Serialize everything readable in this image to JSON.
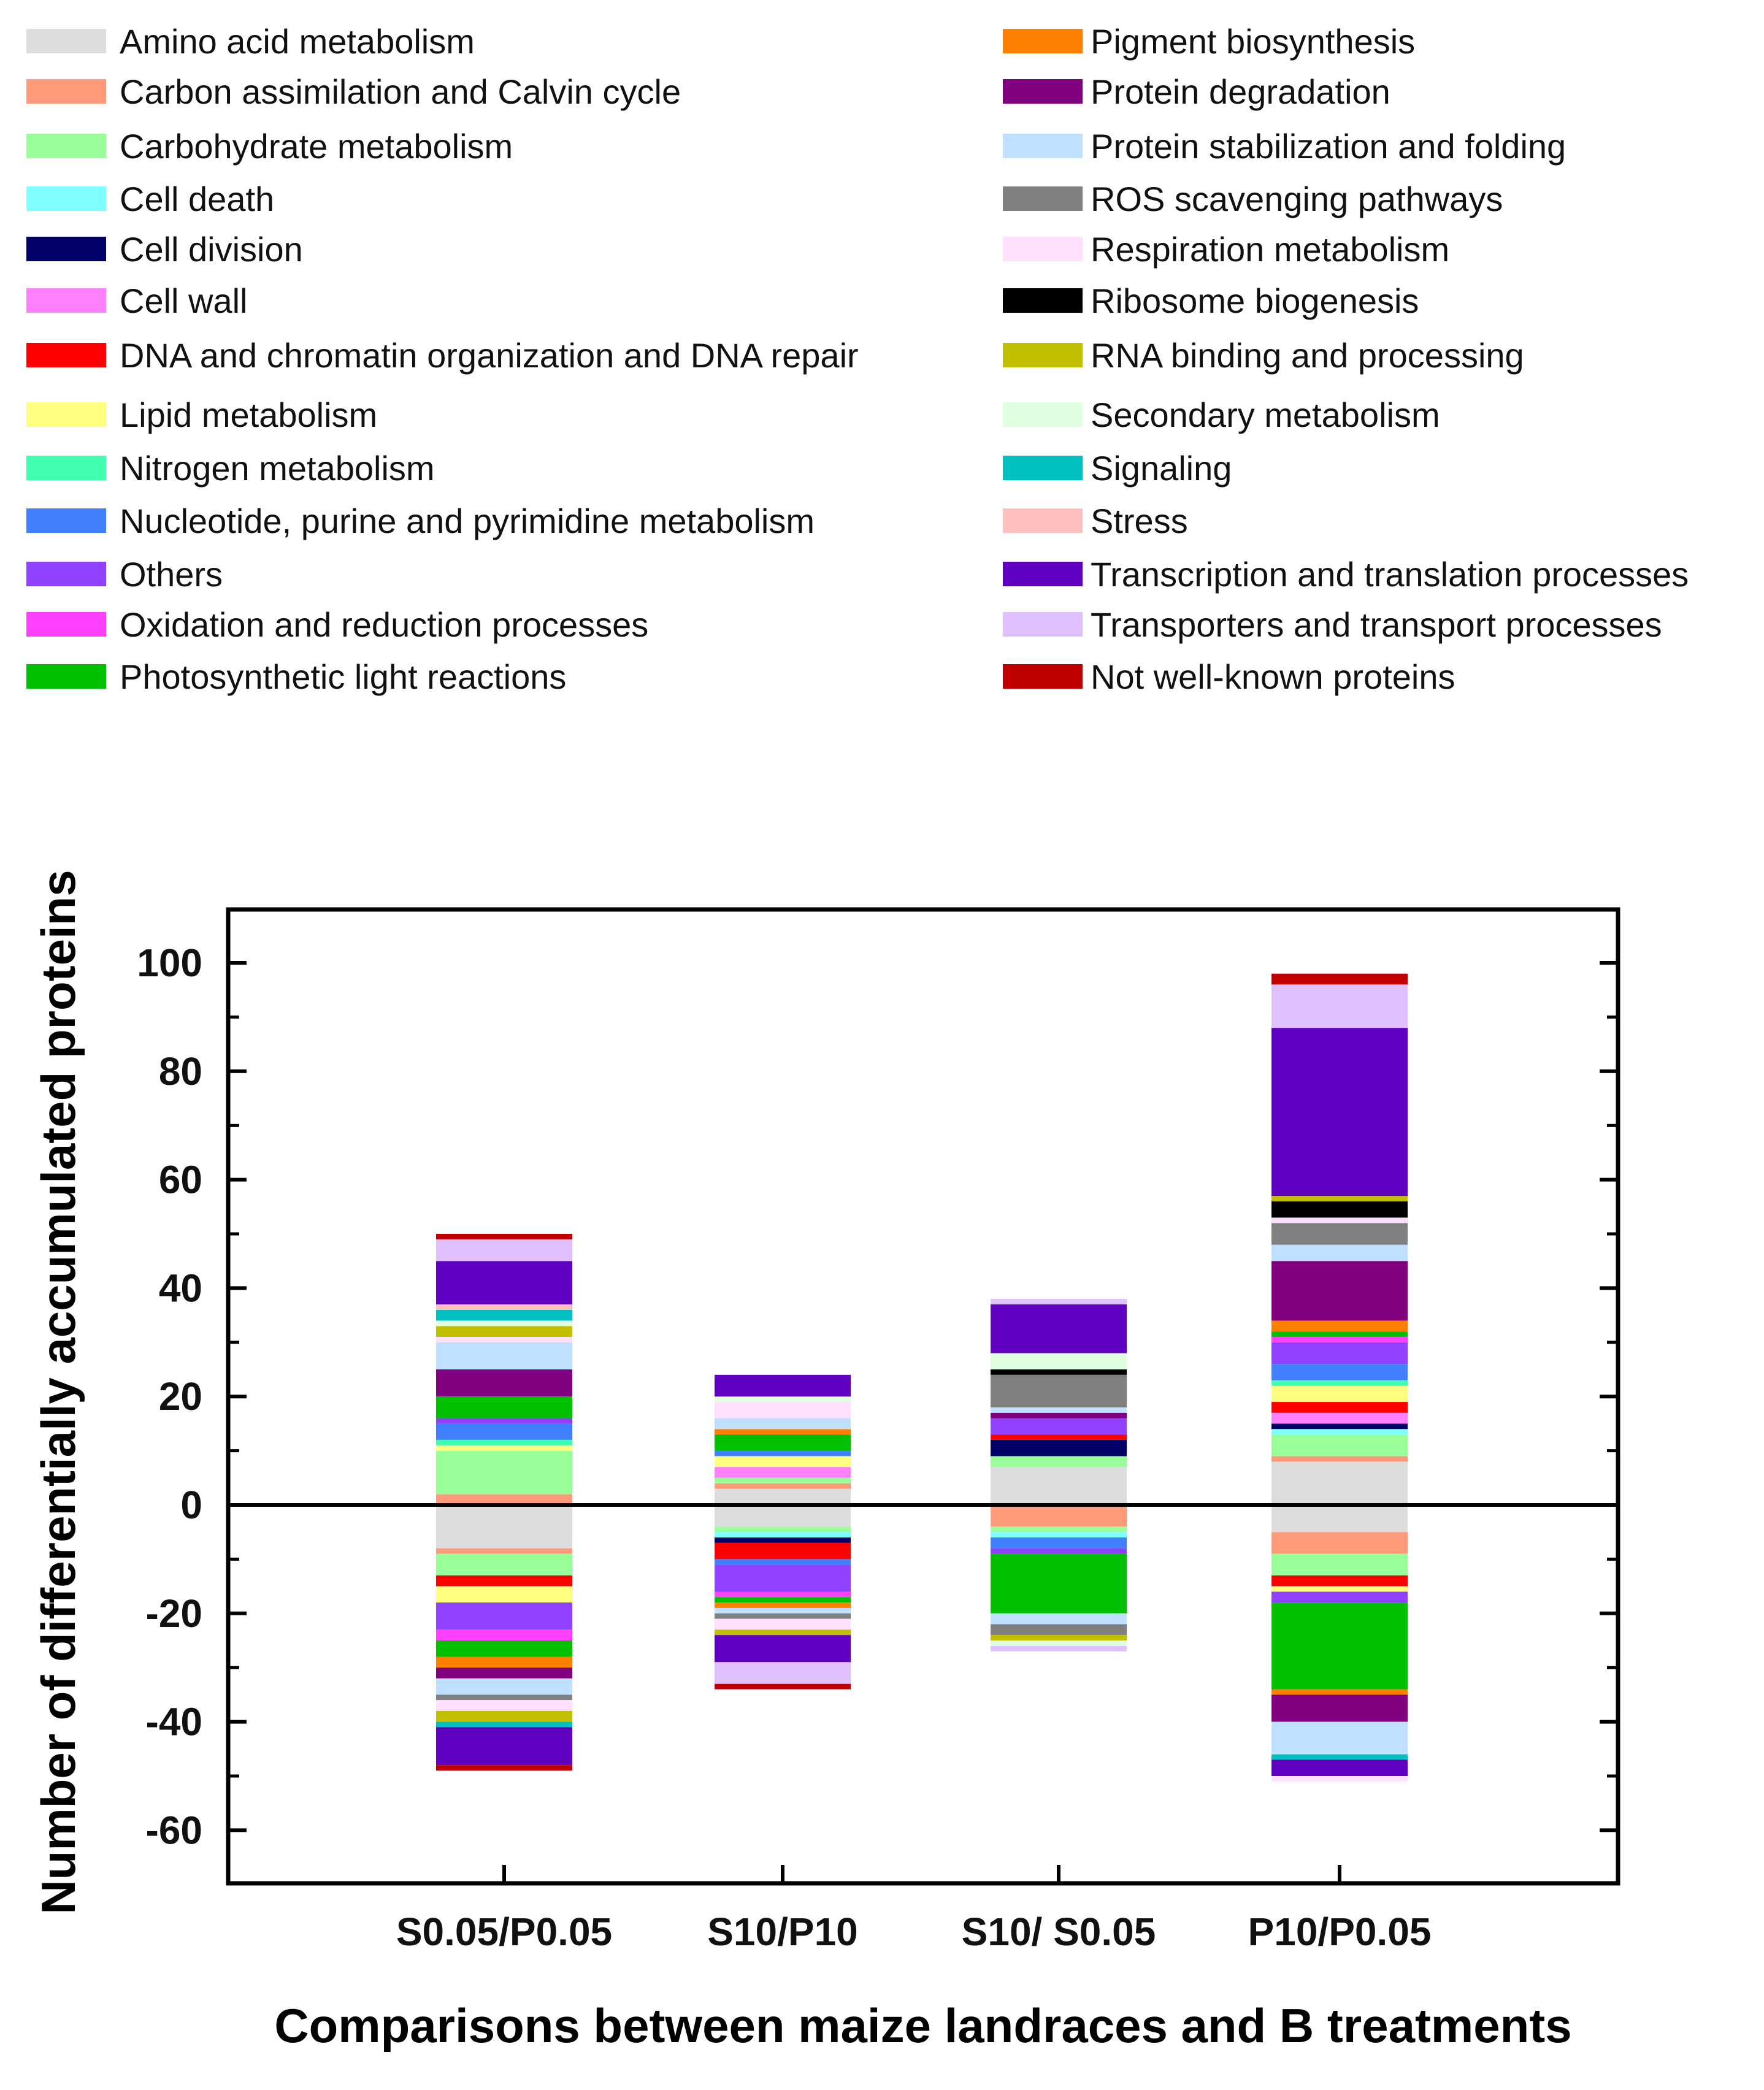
{
  "chart_data": {
    "type": "bar",
    "stacked": true,
    "title": "",
    "xlabel": "Comparisons between maize landraces and B treatments",
    "ylabel": "Number of differentially accumulated proteins",
    "ylim": [
      -70,
      110
    ],
    "yticks": [
      100,
      80,
      60,
      40,
      20,
      0,
      -20,
      -40,
      -60
    ],
    "grid": false,
    "legend_placement": "top",
    "legend": [
      {
        "name": "Amino acid metabolism",
        "color": "#dddddd"
      },
      {
        "name": "Carbon assimilation and Calvin cycle",
        "color": "#ff9a7a"
      },
      {
        "name": "Carbohydrate metabolism",
        "color": "#99ff99"
      },
      {
        "name": "Cell death",
        "color": "#80ffff"
      },
      {
        "name": "Cell division",
        "color": "#000066"
      },
      {
        "name": "Cell wall",
        "color": "#ff80ff"
      },
      {
        "name": "DNA and chromatin organization and DNA repair",
        "color": "#ff0000"
      },
      {
        "name": "Lipid metabolism",
        "color": "#ffff80"
      },
      {
        "name": "Nitrogen metabolism",
        "color": "#40ffb0"
      },
      {
        "name": "Nucleotide, purine and pyrimidine metabolism",
        "color": "#4080ff"
      },
      {
        "name": "Others",
        "color": "#9040ff"
      },
      {
        "name": "Oxidation and reduction processes",
        "color": "#ff40ff"
      },
      {
        "name": "Photosynthetic light reactions",
        "color": "#00c000"
      },
      {
        "name": "Pigment biosynthesis",
        "color": "#ff8000"
      },
      {
        "name": "Protein degradation",
        "color": "#800080"
      },
      {
        "name": "Protein stabilization and folding",
        "color": "#c0e0ff"
      },
      {
        "name": "ROS scavenging pathways",
        "color": "#808080"
      },
      {
        "name": "Respiration metabolism",
        "color": "#ffe0ff"
      },
      {
        "name": "Ribosome biogenesis",
        "color": "#000000"
      },
      {
        "name": "RNA binding and processing",
        "color": "#c0c000"
      },
      {
        "name": "Secondary metabolism",
        "color": "#e0ffe0"
      },
      {
        "name": "Signaling",
        "color": "#00c0c0"
      },
      {
        "name": "Stress",
        "color": "#ffc0c0"
      },
      {
        "name": "Transcription and translation processes",
        "color": "#6000c0"
      },
      {
        "name": "Transporters and transport processes",
        "color": "#e0c0ff"
      },
      {
        "name": "Not well-known proteins",
        "color": "#c00000"
      }
    ],
    "categories": [
      "S0.05/P0.05",
      "S10/P10",
      "S10/ S0.05",
      "P10/P0.05"
    ],
    "bars": [
      {
        "positive": [
          [
            1,
            2
          ],
          [
            2,
            8
          ],
          [
            7,
            1
          ],
          [
            8,
            1
          ],
          [
            9,
            3
          ],
          [
            10,
            1
          ],
          [
            12,
            4
          ],
          [
            14,
            5
          ],
          [
            15,
            5
          ],
          [
            17,
            1
          ],
          [
            19,
            2
          ],
          [
            20,
            1
          ],
          [
            21,
            2
          ],
          [
            22,
            1
          ],
          [
            23,
            8
          ],
          [
            24,
            4
          ],
          [
            25,
            1
          ]
        ],
        "negative": [
          [
            0,
            8
          ],
          [
            1,
            1
          ],
          [
            2,
            4
          ],
          [
            6,
            2
          ],
          [
            7,
            3
          ],
          [
            10,
            5
          ],
          [
            11,
            2
          ],
          [
            12,
            3
          ],
          [
            13,
            2
          ],
          [
            14,
            2
          ],
          [
            15,
            3
          ],
          [
            16,
            1
          ],
          [
            17,
            2
          ],
          [
            19,
            2
          ],
          [
            21,
            1
          ],
          [
            23,
            7
          ],
          [
            25,
            1
          ]
        ]
      },
      {
        "positive": [
          [
            0,
            3
          ],
          [
            1,
            1
          ],
          [
            2,
            1
          ],
          [
            5,
            2
          ],
          [
            7,
            2
          ],
          [
            9,
            1
          ],
          [
            12,
            3
          ],
          [
            13,
            1
          ],
          [
            15,
            2
          ],
          [
            17,
            3
          ],
          [
            20,
            1
          ],
          [
            23,
            4
          ]
        ],
        "negative": [
          [
            0,
            4
          ],
          [
            2,
            1
          ],
          [
            3,
            1
          ],
          [
            4,
            1
          ],
          [
            6,
            3
          ],
          [
            9,
            1
          ],
          [
            10,
            5
          ],
          [
            11,
            1
          ],
          [
            12,
            1
          ],
          [
            13,
            1
          ],
          [
            15,
            1
          ],
          [
            16,
            1
          ],
          [
            17,
            2
          ],
          [
            19,
            1
          ],
          [
            23,
            5
          ],
          [
            24,
            4
          ],
          [
            25,
            1
          ]
        ]
      },
      {
        "positive": [
          [
            0,
            7
          ],
          [
            2,
            2
          ],
          [
            4,
            3
          ],
          [
            6,
            1
          ],
          [
            10,
            3
          ],
          [
            14,
            1
          ],
          [
            15,
            1
          ],
          [
            16,
            6
          ],
          [
            18,
            1
          ],
          [
            20,
            3
          ],
          [
            23,
            9
          ],
          [
            24,
            1
          ]
        ],
        "negative": [
          [
            1,
            4
          ],
          [
            2,
            1
          ],
          [
            3,
            1
          ],
          [
            9,
            2
          ],
          [
            10,
            1
          ],
          [
            12,
            11
          ],
          [
            15,
            2
          ],
          [
            16,
            2
          ],
          [
            19,
            1
          ],
          [
            20,
            1
          ],
          [
            24,
            1
          ]
        ]
      },
      {
        "positive": [
          [
            0,
            8
          ],
          [
            1,
            1
          ],
          [
            2,
            4
          ],
          [
            3,
            1
          ],
          [
            4,
            1
          ],
          [
            5,
            2
          ],
          [
            6,
            2
          ],
          [
            7,
            3
          ],
          [
            8,
            1
          ],
          [
            9,
            3
          ],
          [
            10,
            4
          ],
          [
            11,
            1
          ],
          [
            12,
            1
          ],
          [
            13,
            2
          ],
          [
            14,
            11
          ],
          [
            15,
            3
          ],
          [
            16,
            4
          ],
          [
            17,
            1
          ],
          [
            18,
            3
          ],
          [
            19,
            1
          ],
          [
            23,
            31
          ],
          [
            24,
            8
          ],
          [
            25,
            2
          ]
        ],
        "negative": [
          [
            0,
            5
          ],
          [
            1,
            4
          ],
          [
            2,
            4
          ],
          [
            6,
            2
          ],
          [
            7,
            1
          ],
          [
            10,
            2
          ],
          [
            12,
            16
          ],
          [
            13,
            1
          ],
          [
            14,
            5
          ],
          [
            15,
            6
          ],
          [
            21,
            1
          ],
          [
            23,
            3
          ],
          [
            17,
            1
          ]
        ]
      }
    ]
  }
}
